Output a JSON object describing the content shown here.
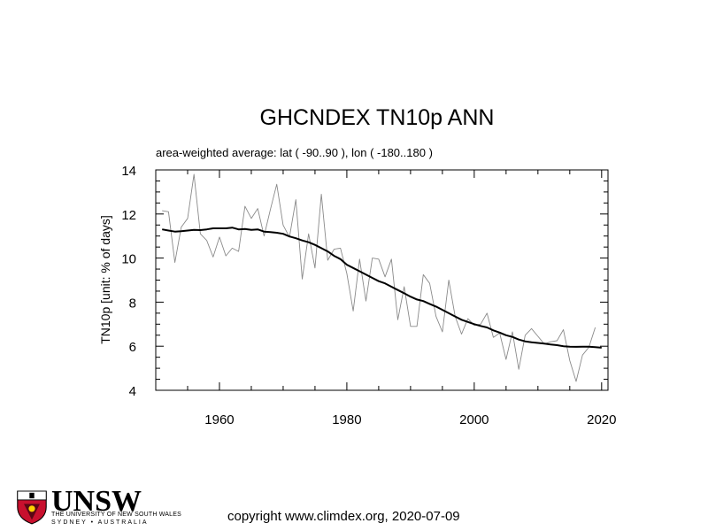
{
  "chart_data": {
    "type": "line",
    "title": "GHCNDEX TN10p ANN",
    "subtitle": "area-weighted average: lat ( -90..90 ), lon ( -180..180 )",
    "xlabel": "",
    "ylabel": "TN10p [unit: % of days]",
    "xlim": [
      1950,
      2021
    ],
    "ylim": [
      4,
      14
    ],
    "xticks": [
      1960,
      1980,
      2000,
      2020
    ],
    "yticks": [
      4,
      6,
      8,
      10,
      12,
      14
    ],
    "grid": false,
    "series": [
      {
        "style": "thin-gray",
        "x": [
          1951,
          1952,
          1953,
          1954,
          1955,
          1956,
          1957,
          1958,
          1959,
          1960,
          1961,
          1962,
          1963,
          1964,
          1965,
          1966,
          1967,
          1968,
          1969,
          1970,
          1971,
          1972,
          1973,
          1974,
          1975,
          1976,
          1977,
          1978,
          1979,
          1980,
          1981,
          1982,
          1983,
          1984,
          1985,
          1986,
          1987,
          1988,
          1989,
          1990,
          1991,
          1992,
          1993,
          1994,
          1995,
          1996,
          1997,
          1998,
          1999,
          2000,
          2001,
          2002,
          2003,
          2004,
          2005,
          2006,
          2007,
          2008,
          2009,
          2010,
          2011,
          2012,
          2013,
          2014,
          2015,
          2016,
          2017,
          2018,
          2019
        ],
        "y": [
          12.15,
          12.1,
          9.8,
          11.4,
          11.8,
          13.8,
          11.1,
          10.8,
          10.05,
          10.95,
          10.1,
          10.45,
          10.3,
          12.35,
          11.8,
          12.25,
          11.0,
          12.2,
          13.35,
          11.5,
          10.95,
          12.65,
          9.05,
          11.1,
          9.55,
          12.9,
          9.9,
          10.4,
          10.45,
          9.3,
          7.6,
          9.95,
          8.05,
          10.0,
          9.95,
          9.15,
          9.95,
          7.2,
          8.7,
          6.9,
          6.9,
          9.25,
          8.85,
          7.35,
          6.65,
          9.0,
          7.35,
          6.55,
          7.25,
          6.95,
          7.0,
          7.5,
          6.4,
          6.6,
          5.4,
          6.65,
          4.95,
          6.5,
          6.8,
          6.45,
          6.1,
          6.2,
          6.25,
          6.75,
          5.35,
          4.4,
          5.6,
          5.95,
          6.85
        ]
      },
      {
        "style": "thick-black",
        "x": [
          1951,
          1952,
          1953,
          1954,
          1955,
          1956,
          1957,
          1958,
          1959,
          1960,
          1961,
          1962,
          1963,
          1964,
          1965,
          1966,
          1967,
          1968,
          1969,
          1970,
          1971,
          1972,
          1973,
          1974,
          1975,
          1976,
          1977,
          1978,
          1979,
          1980,
          1981,
          1982,
          1983,
          1984,
          1985,
          1986,
          1987,
          1988,
          1989,
          1990,
          1991,
          1992,
          1993,
          1994,
          1995,
          1996,
          1997,
          1998,
          1999,
          2000,
          2001,
          2002,
          2003,
          2004,
          2005,
          2006,
          2007,
          2008,
          2009,
          2010,
          2011,
          2012,
          2013,
          2014,
          2015,
          2016,
          2017,
          2018,
          2019,
          2020
        ],
        "y": [
          11.3,
          11.25,
          11.2,
          11.22,
          11.25,
          11.28,
          11.27,
          11.3,
          11.35,
          11.35,
          11.35,
          11.38,
          11.3,
          11.32,
          11.28,
          11.3,
          11.2,
          11.18,
          11.15,
          11.1,
          10.98,
          10.9,
          10.8,
          10.72,
          10.6,
          10.45,
          10.3,
          10.1,
          9.95,
          9.7,
          9.55,
          9.4,
          9.25,
          9.1,
          8.95,
          8.85,
          8.7,
          8.55,
          8.4,
          8.25,
          8.12,
          8.05,
          7.92,
          7.8,
          7.65,
          7.5,
          7.35,
          7.2,
          7.1,
          7.0,
          6.92,
          6.85,
          6.72,
          6.62,
          6.5,
          6.42,
          6.3,
          6.22,
          6.18,
          6.15,
          6.12,
          6.08,
          6.05,
          6.0,
          5.98,
          5.97,
          5.98,
          5.98,
          5.96,
          5.93
        ]
      }
    ]
  },
  "footer": {
    "logo_text": "UNSW",
    "logo_line1": "THE UNIVERSITY OF NEW SOUTH WALES",
    "logo_line2": "SYDNEY • AUSTRALIA",
    "copyright": "copyright www.climdex.org, 2020-07-09"
  }
}
